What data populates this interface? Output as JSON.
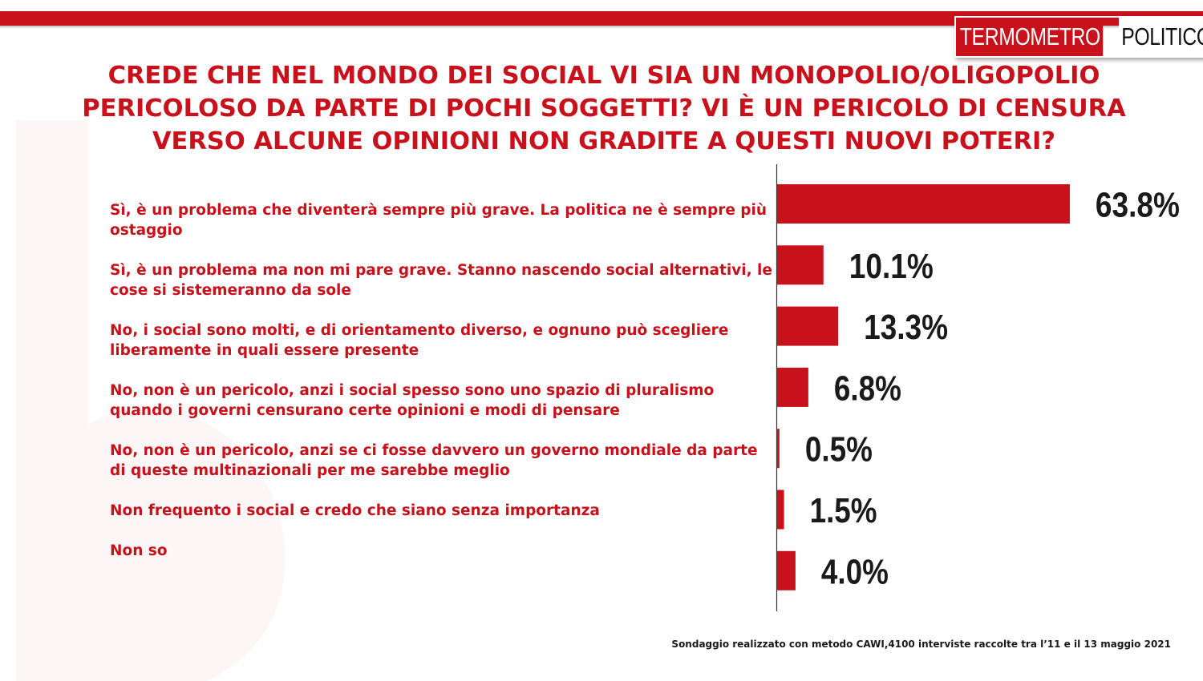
{
  "logo": {
    "part1": "TERMOMETRO",
    "part2": "POLITICO"
  },
  "title": "CREDE CHE NEL MONDO DEI SOCIAL VI SIA UN MONOPOLIO/OLIGOPOLIO PERICOLOSO DA PARTE DI POCHI SOGGETTI? VI È UN PERICOLO DI CENSURA VERSO ALCUNE OPINIONI NON GRADITE A QUESTI NUOVI POTERI?",
  "footnote": "Sondaggio realizzato con metodo CAWI,4100 interviste raccolte tra l’11  e il 13 maggio 2021",
  "colors": {
    "accent": "#c8111b",
    "bar": "#c8111b",
    "value_text": "#1a1a1a"
  },
  "chart_data": {
    "type": "bar",
    "orientation": "horizontal",
    "categories": [
      "Sì, è un problema che diventerà  sempre più grave. La politica ne è sempre più ostaggio",
      "Sì, è un problema ma non mi pare grave. Stanno nascendo social alternativi, le cose si sistemeranno da sole",
      "No, i social sono molti, e di orientamento diverso, e ognuno può scegliere liberamente in quali essere presente",
      "No, non è un pericolo, anzi i social spesso sono uno spazio di pluralismo quando i governi censurano certe opinioni e modi di pensare",
      "No, non è un pericolo, anzi se ci fosse davvero un governo mondiale da parte di queste multinazionali per me sarebbe meglio",
      "Non frequento i social e credo che siano senza importanza",
      "Non so"
    ],
    "values": [
      63.8,
      10.1,
      13.3,
      6.8,
      0.5,
      1.5,
      4.0
    ],
    "value_labels": [
      "63.8%",
      "10.1%",
      "13.3%",
      "6.8%",
      "0.5%",
      "1.5%",
      "4.0%"
    ],
    "unit": "%",
    "xlim": [
      0,
      100
    ],
    "grid": false,
    "legend": "none"
  }
}
